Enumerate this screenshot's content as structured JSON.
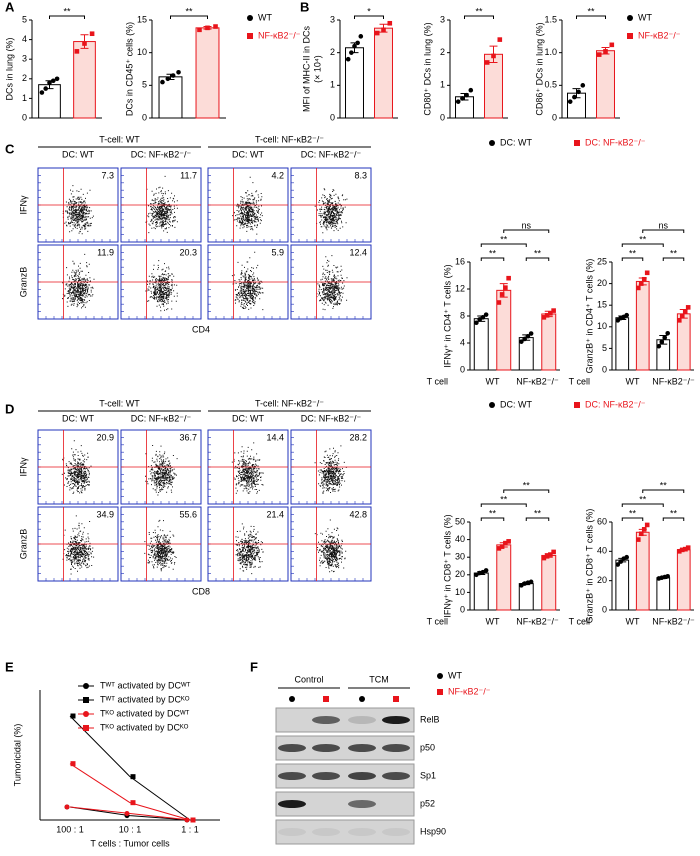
{
  "panel_labels": [
    "A",
    "B",
    "C",
    "D",
    "E",
    "F"
  ],
  "legend": [
    {
      "name": "WT",
      "color": "#000000",
      "marker": "circle"
    },
    {
      "name": "NF-κB2⁻/⁻",
      "color": "#e8141b",
      "marker": "square"
    }
  ],
  "bar_charts": [
    {
      "type": "bar",
      "ylabel": [
        "DCs in lung (%)"
      ],
      "ylim": [
        0,
        5
      ],
      "yticks": [
        0,
        1,
        2,
        3,
        4,
        5
      ],
      "significance": [
        "**"
      ],
      "series": [
        {
          "name": "WT",
          "color": "#000000",
          "fill": "#ffffff",
          "marker": "circle",
          "values": [
            1.7
          ],
          "errors": [
            0.2
          ],
          "points": [
            [
              1.3,
              1.5,
              1.8,
              1.9,
              2.0
            ]
          ]
        },
        {
          "name": "NF-κB2⁻/⁻",
          "color": "#e8141b",
          "fill": "#fcdcd8",
          "marker": "square",
          "values": [
            3.9
          ],
          "errors": [
            0.35
          ],
          "points": [
            [
              3.4,
              3.8,
              4.3
            ]
          ]
        }
      ]
    },
    {
      "type": "bar",
      "ylabel": [
        "DCs in CD45⁺ cells (%)"
      ],
      "ylim": [
        0,
        15
      ],
      "yticks": [
        0,
        5,
        10,
        15
      ],
      "significance": [
        "**"
      ],
      "series": [
        {
          "name": "WT",
          "color": "#000000",
          "fill": "#ffffff",
          "marker": "circle",
          "values": [
            6.3
          ],
          "errors": [
            0.4
          ],
          "points": [
            [
              5.5,
              6.0,
              6.5,
              7.0
            ]
          ]
        },
        {
          "name": "NF-κB2⁻/⁻",
          "color": "#e8141b",
          "fill": "#fcdcd8",
          "marker": "square",
          "values": [
            13.8
          ],
          "errors": [
            0.2
          ],
          "points": [
            [
              13.5,
              13.8,
              14.0
            ]
          ]
        }
      ]
    },
    {
      "type": "bar",
      "ylabel": [
        "MFI of MHC-II in DCs",
        "(× 10⁴)"
      ],
      "ylim": [
        0,
        3
      ],
      "yticks": [
        0,
        1,
        2,
        3
      ],
      "significance": [
        "*"
      ],
      "series": [
        {
          "name": "WT",
          "color": "#000000",
          "fill": "#ffffff",
          "marker": "circle",
          "values": [
            2.15
          ],
          "errors": [
            0.15
          ],
          "points": [
            [
              1.8,
              2.0,
              2.2,
              2.3,
              2.5
            ]
          ]
        },
        {
          "name": "NF-κB2⁻/⁻",
          "color": "#e8141b",
          "fill": "#fcdcd8",
          "marker": "square",
          "values": [
            2.75
          ],
          "errors": [
            0.12
          ],
          "points": [
            [
              2.6,
              2.7,
              2.9
            ]
          ]
        }
      ]
    },
    {
      "type": "bar",
      "ylabel": [
        "CD80⁺ DCs in lung (%)"
      ],
      "ylim": [
        0,
        3
      ],
      "yticks": [
        0,
        1,
        2,
        3
      ],
      "significance": [
        "**"
      ],
      "series": [
        {
          "name": "WT",
          "color": "#000000",
          "fill": "#ffffff",
          "marker": "circle",
          "values": [
            0.65
          ],
          "errors": [
            0.1
          ],
          "points": [
            [
              0.5,
              0.6,
              0.7,
              0.85
            ]
          ]
        },
        {
          "name": "NF-κB2⁻/⁻",
          "color": "#e8141b",
          "fill": "#fcdcd8",
          "marker": "square",
          "values": [
            1.95
          ],
          "errors": [
            0.25
          ],
          "points": [
            [
              1.7,
              1.9,
              2.4
            ]
          ]
        }
      ]
    },
    {
      "type": "bar",
      "ylabel": [
        "CD86⁺ DCs in lung (%)"
      ],
      "ylim": [
        0,
        1.5
      ],
      "yticks": [
        0,
        0.5,
        {
          "value": 1,
          "label": "1.0"
        },
        1.5
      ],
      "significance": [
        "**"
      ],
      "series": [
        {
          "name": "WT",
          "color": "#000000",
          "fill": "#ffffff",
          "marker": "circle",
          "values": [
            0.38
          ],
          "errors": [
            0.07
          ],
          "points": [
            [
              0.25,
              0.32,
              0.4,
              0.5
            ]
          ]
        },
        {
          "name": "NF-κB2⁻/⁻",
          "color": "#e8141b",
          "fill": "#fcdcd8",
          "marker": "square",
          "values": [
            1.03
          ],
          "errors": [
            0.05
          ],
          "points": [
            [
              0.97,
              1.02,
              1.12
            ]
          ]
        }
      ]
    },
    {
      "type": "bar",
      "ylabel": [
        "IFNγ⁺ in CD4⁺ T cells (%)"
      ],
      "xlabel": "T cell",
      "categories": [
        "WT",
        "NF-κB2⁻/⁻"
      ],
      "ylim": [
        0,
        16
      ],
      "yticks": [
        0,
        4,
        8,
        12,
        16
      ],
      "significance": [
        "**",
        "**",
        "**",
        "ns"
      ],
      "series": [
        {
          "name": "DC: WT",
          "color": "#000000",
          "fill": "#ffffff",
          "marker": "circle",
          "values": [
            7.6,
            4.8
          ],
          "errors": [
            0.4,
            0.4
          ],
          "points": [
            [
              7.0,
              7.5,
              7.8,
              8.2
            ],
            [
              4.2,
              4.6,
              5.0,
              5.4
            ]
          ]
        },
        {
          "name": "DC: NF-κB2⁻/⁻",
          "color": "#e8141b",
          "fill": "#fcdcd8",
          "marker": "square",
          "values": [
            11.8,
            8.3
          ],
          "errors": [
            1.0,
            0.4
          ],
          "points": [
            [
              10.0,
              11.2,
              12.2,
              13.6
            ],
            [
              7.8,
              8.1,
              8.4,
              8.8
            ]
          ]
        }
      ]
    },
    {
      "type": "bar",
      "ylabel": [
        "GranzB⁺ in CD4⁺ T cells (%)"
      ],
      "xlabel": "T cell",
      "categories": [
        "WT",
        "NF-κB2⁻/⁻"
      ],
      "ylim": [
        0,
        25
      ],
      "yticks": [
        0,
        5,
        10,
        15,
        20,
        25
      ],
      "significance": [
        "**",
        "**",
        "**",
        "ns"
      ],
      "series": [
        {
          "name": "DC: WT",
          "color": "#000000",
          "fill": "#ffffff",
          "marker": "circle",
          "values": [
            12.1,
            7.0
          ],
          "errors": [
            0.4,
            1.0
          ],
          "points": [
            [
              11.5,
              12.0,
              12.3,
              12.7
            ],
            [
              5.5,
              6.5,
              7.5,
              8.5
            ]
          ]
        },
        {
          "name": "DC: NF-κB2⁻/⁻",
          "color": "#e8141b",
          "fill": "#fcdcd8",
          "marker": "square",
          "values": [
            20.5,
            13.0
          ],
          "errors": [
            0.8,
            1.0
          ],
          "points": [
            [
              19.0,
              20.0,
              21.0,
              22.5
            ],
            [
              11.5,
              12.5,
              13.5,
              14.5
            ]
          ]
        }
      ]
    },
    {
      "type": "bar",
      "ylabel": [
        "IFNγ⁺ in CD8⁺ T cells (%)"
      ],
      "xlabel": "T cell",
      "categories": [
        "WT",
        "NF-κB2⁻/⁻"
      ],
      "ylim": [
        0,
        50
      ],
      "yticks": [
        0,
        10,
        20,
        30,
        40,
        50
      ],
      "significance": [
        "**",
        "**",
        "**",
        "**"
      ],
      "series": [
        {
          "name": "DC: WT",
          "color": "#000000",
          "fill": "#ffffff",
          "marker": "circle",
          "values": [
            21,
            15
          ],
          "errors": [
            0.8,
            0.6
          ],
          "points": [
            [
              20,
              21,
              21.5,
              22.5
            ],
            [
              14,
              15,
              15.5,
              16
            ]
          ]
        },
        {
          "name": "DC: NF-κB2⁻/⁻",
          "color": "#e8141b",
          "fill": "#fcdcd8",
          "marker": "square",
          "values": [
            37,
            31
          ],
          "errors": [
            1.2,
            1.0
          ],
          "points": [
            [
              35,
              36,
              38,
              39
            ],
            [
              29.5,
              30.5,
              31.5,
              33
            ]
          ]
        }
      ]
    },
    {
      "type": "bar",
      "ylabel": [
        "GranzB⁺ in CD8⁺ T cells (%)"
      ],
      "xlabel": "T cell",
      "categories": [
        "WT",
        "NF-κB2⁻/⁻"
      ],
      "ylim": [
        0,
        60
      ],
      "yticks": [
        0,
        20,
        40,
        60
      ],
      "significance": [
        "**",
        "**",
        "**",
        "**"
      ],
      "series": [
        {
          "name": "DC: WT",
          "color": "#000000",
          "fill": "#ffffff",
          "marker": "circle",
          "values": [
            34,
            22
          ],
          "errors": [
            1.2,
            0.5
          ],
          "points": [
            [
              31,
              33,
              35,
              36
            ],
            [
              21.5,
              22,
              22.5,
              23
            ]
          ]
        },
        {
          "name": "DC: NF-κB2⁻/⁻",
          "color": "#e8141b",
          "fill": "#fcdcd8",
          "marker": "square",
          "values": [
            53,
            41
          ],
          "errors": [
            2.0,
            0.8
          ],
          "points": [
            [
              48,
              52,
              55,
              58
            ],
            [
              40,
              41,
              41.5,
              42.5
            ]
          ]
        }
      ]
    }
  ],
  "flow": [
    {
      "headers": [
        "T-cell: WT",
        "T-cell: NF-κB2⁻/⁻"
      ],
      "dc_labels": [
        "DC: WT",
        "DC: NF-κB2⁻/⁻",
        "DC: WT",
        "DC: NF-κB2⁻/⁻"
      ],
      "rows": [
        "IFNγ",
        "GranzB"
      ],
      "xlabel": "CD4",
      "values": [
        [
          7.3,
          11.7,
          4.2,
          8.3
        ],
        [
          11.9,
          20.3,
          5.9,
          12.4
        ]
      ]
    },
    {
      "headers": [
        "T-cell: WT",
        "T-cell: NF-κB2⁻/⁻"
      ],
      "dc_labels": [
        "DC: WT",
        "DC: NF-κB2⁻/⁻",
        "DC: WT",
        "DC: NF-κB2⁻/⁻"
      ],
      "rows": [
        "IFNγ",
        "GranzB"
      ],
      "xlabel": "CD8",
      "values": [
        [
          20.9,
          36.7,
          14.4,
          28.2
        ],
        [
          34.9,
          55.6,
          21.4,
          42.8
        ]
      ]
    }
  ],
  "line_chart": {
    "type": "line",
    "ylabel": "Tumoricidal (%)",
    "xlabel": "T cells : Tumor cells",
    "categories": [
      "100 : 1",
      "10 : 1",
      "1 : 1"
    ],
    "ylim": [
      0,
      30
    ],
    "series": [
      {
        "name": "Tᵂᵀ activated by DCᵂᵀ",
        "color": "#000000",
        "marker": "circle",
        "values": [
          3,
          1,
          0
        ]
      },
      {
        "name": "Tᵂᵀ activated by DCᴷᴼ",
        "color": "#000000",
        "marker": "square",
        "values": [
          24,
          10,
          0
        ]
      },
      {
        "name": "Tᴷᴼ activated by DCᵂᵀ",
        "color": "#e8141b",
        "marker": "circle",
        "values": [
          3,
          1.5,
          0
        ]
      },
      {
        "name": "Tᴷᴼ activated by DCᴷᴼ",
        "color": "#e8141b",
        "marker": "square",
        "values": [
          13,
          4,
          0
        ]
      }
    ]
  },
  "blot": {
    "groups": [
      "Control",
      "TCM"
    ],
    "rows": [
      "RelB",
      "p50",
      "Sp1",
      "p52",
      "Hsp90"
    ]
  }
}
